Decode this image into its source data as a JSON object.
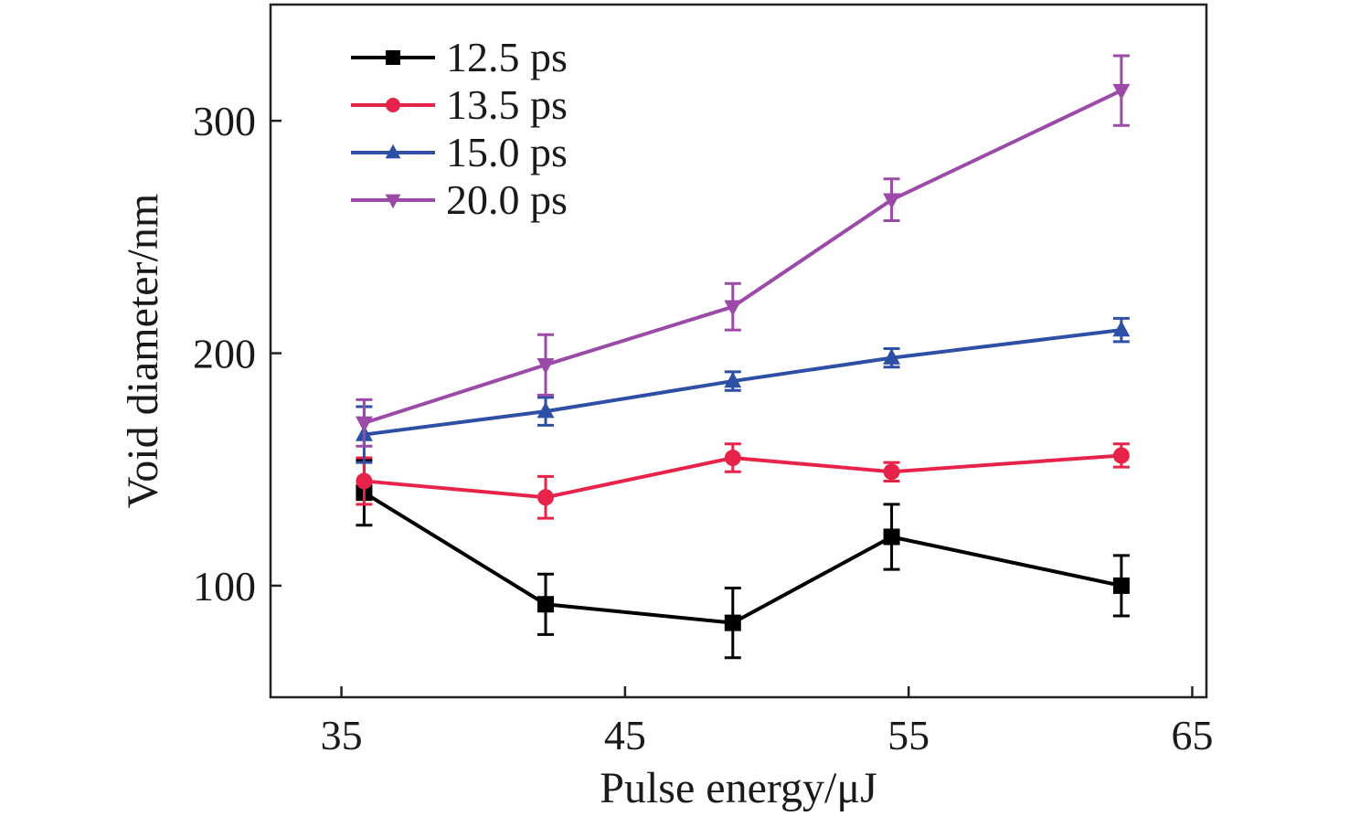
{
  "chart_data": {
    "type": "line",
    "title": "",
    "xlabel": "Pulse energy/μJ",
    "ylabel": "Void diameter/nm",
    "xlim": [
      32.5,
      65.5
    ],
    "ylim": [
      52,
      350
    ],
    "xticks": [
      35,
      45,
      55,
      65
    ],
    "yticks": [
      100,
      200,
      300
    ],
    "grid": false,
    "legend_position": "top-left",
    "series": [
      {
        "name": "12.5 ps",
        "color": "#000000",
        "marker": "square",
        "x": [
          35.8,
          42.2,
          48.8,
          54.4,
          62.5
        ],
        "y": [
          140,
          92,
          84,
          121,
          100
        ],
        "err": [
          14,
          13,
          15,
          14,
          13
        ]
      },
      {
        "name": "13.5 ps",
        "color": "#e8234a",
        "marker": "circle",
        "x": [
          35.8,
          42.2,
          48.8,
          54.4,
          62.5
        ],
        "y": [
          145,
          138,
          155,
          149,
          156
        ],
        "err": [
          10,
          9,
          6,
          4,
          5
        ]
      },
      {
        "name": "15.0 ps",
        "color": "#2e4fa6",
        "marker": "triangle-up",
        "x": [
          35.8,
          42.2,
          48.8,
          54.4,
          62.5
        ],
        "y": [
          165,
          175,
          188,
          198,
          210
        ],
        "err": [
          12,
          6,
          4,
          4,
          5
        ]
      },
      {
        "name": "20.0 ps",
        "color": "#9b4aa8",
        "marker": "triangle-down",
        "x": [
          35.8,
          42.2,
          48.8,
          54.4,
          62.5
        ],
        "y": [
          170,
          195,
          220,
          266,
          313
        ],
        "err": [
          10,
          13,
          10,
          9,
          15
        ]
      }
    ]
  }
}
